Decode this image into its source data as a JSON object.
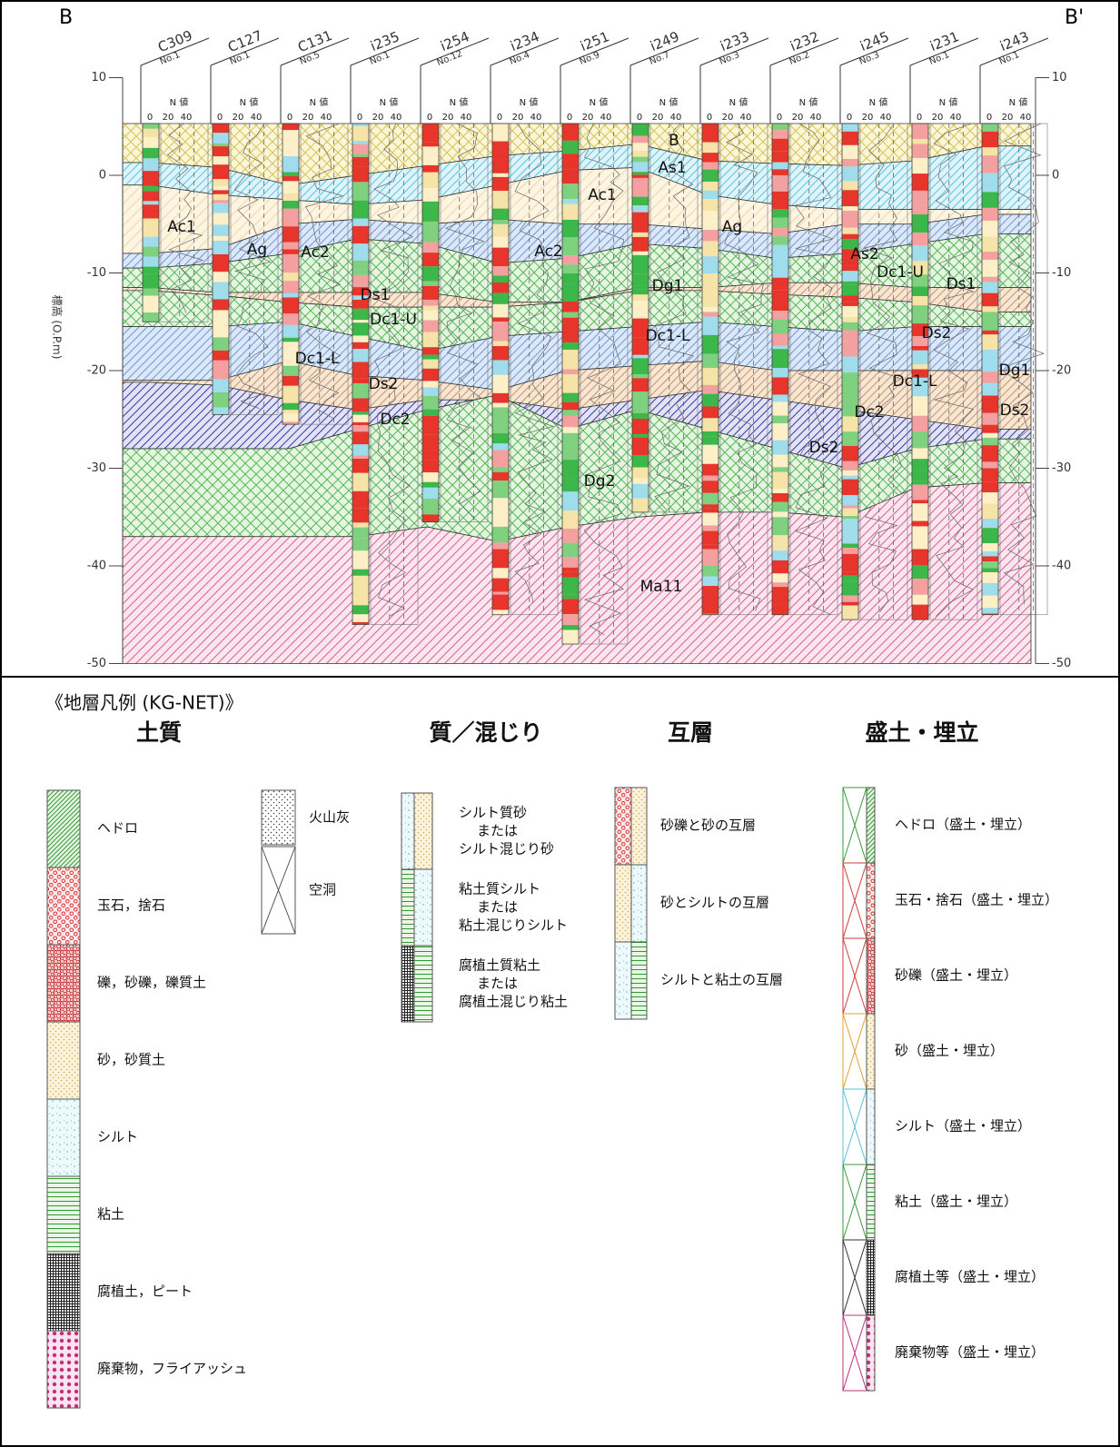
{
  "section": {
    "left_label": "B",
    "right_label": "B'",
    "axis_title": "標高 (O.P.m)",
    "elevation_ticks": [
      10,
      0,
      -10,
      -20,
      -30,
      -40,
      -50
    ],
    "n_value_label": "N 値",
    "n_value_scale": [
      0,
      20,
      40
    ],
    "boreholes": [
      {
        "name": "C309",
        "number": "No.1"
      },
      {
        "name": "C127",
        "number": "No.1"
      },
      {
        "name": "C131",
        "number": "No.5"
      },
      {
        "name": "i235",
        "number": "No.1"
      },
      {
        "name": "i254",
        "number": "No.12"
      },
      {
        "name": "i234",
        "number": "No.4"
      },
      {
        "name": "i251",
        "number": "No.9"
      },
      {
        "name": "i249",
        "number": "No.7"
      },
      {
        "name": "i233",
        "number": "No.3"
      },
      {
        "name": "i232",
        "number": "No.2"
      },
      {
        "name": "i245",
        "number": "No.3"
      },
      {
        "name": "i231",
        "number": "No.1"
      },
      {
        "name": "i243",
        "number": "No.1"
      }
    ],
    "layer_labels": [
      "B",
      "As1",
      "Ac1",
      "Ac1",
      "Ag",
      "Ac2",
      "Ac2",
      "Ag",
      "As2",
      "Dg1",
      "Dc1-U",
      "Ds1",
      "Ds1",
      "Dc1-U",
      "Dc1-L",
      "Dc1-L",
      "Ds2",
      "Ds2",
      "Dg1",
      "Dc1-L",
      "Dc2",
      "Dc2",
      "Ds2",
      "Ds2",
      "Dg2",
      "Ma11"
    ]
  },
  "legend": {
    "title": "《地層凡例 (KG-NET)》",
    "groups": [
      {
        "heading": "土質",
        "items": [
          [
            "ヘドロ"
          ],
          [
            "玉石，捨石"
          ],
          [
            "礫，砂礫，礫質土"
          ],
          [
            "砂，砂質土"
          ],
          [
            "シルト"
          ],
          [
            "粘土"
          ],
          [
            "腐植土，ピート"
          ],
          [
            "廃棄物，フライアッシュ"
          ]
        ],
        "extra_items": [
          [
            "火山灰"
          ],
          [
            "空洞"
          ]
        ]
      },
      {
        "heading": "質／混じり",
        "items": [
          [
            "シルト質砂",
            "または",
            "シルト混じり砂"
          ],
          [
            "粘土質シルト",
            "または",
            "粘土混じりシルト"
          ],
          [
            "腐植土質粘土",
            "または",
            "腐植土混じり粘土"
          ]
        ]
      },
      {
        "heading": "互層",
        "items": [
          [
            "砂礫と砂の互層"
          ],
          [
            "砂とシルトの互層"
          ],
          [
            "シルトと粘土の互層"
          ]
        ]
      },
      {
        "heading": "盛土・埋立",
        "items": [
          [
            "ヘドロ（盛土・埋立）"
          ],
          [
            "玉石・捨石（盛土・埋立）"
          ],
          [
            "砂礫（盛土・埋立）"
          ],
          [
            "砂（盛土・埋立）"
          ],
          [
            "シルト（盛土・埋立）"
          ],
          [
            "粘土（盛土・埋立）"
          ],
          [
            "腐植土等（盛土・埋立）"
          ],
          [
            "廃棄物等（盛土・埋立）"
          ]
        ]
      }
    ]
  }
}
